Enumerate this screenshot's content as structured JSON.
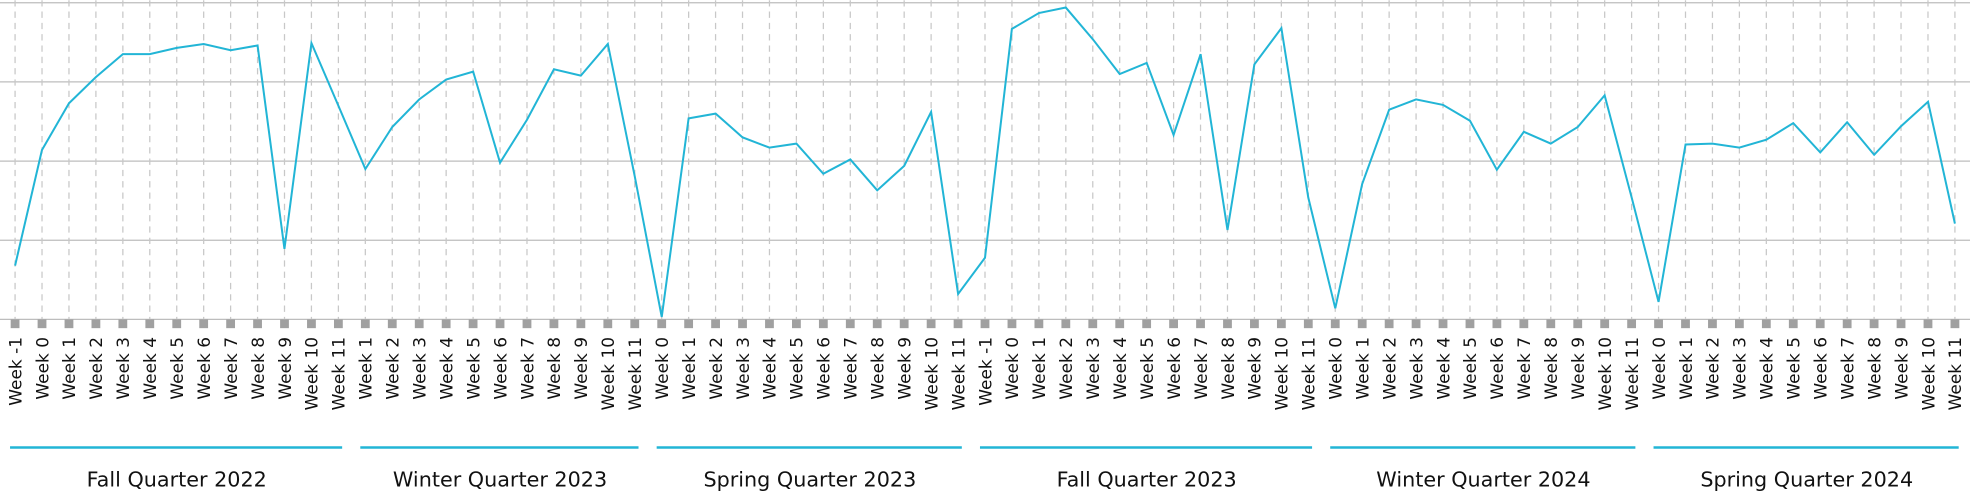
{
  "chart_data": {
    "type": "line",
    "color": "#22b5d6",
    "ylim": [
      0,
      4
    ],
    "yticks": [
      0,
      1,
      2,
      3,
      4
    ],
    "grid": true,
    "groups": [
      {
        "label": "Fall Quarter 2022",
        "categories": [
          "Week -1",
          "Week 0",
          "Week 1",
          "Week 2",
          "Week 3",
          "Week 4",
          "Week 5",
          "Week 6",
          "Week 7",
          "Week 8",
          "Week 9",
          "Week 10",
          "Week 11"
        ],
        "values": [
          0.68,
          2.14,
          2.73,
          3.06,
          3.35,
          3.35,
          3.43,
          3.48,
          3.4,
          3.46,
          0.89,
          3.49,
          2.7
        ]
      },
      {
        "label": "Winter Quarter 2023",
        "categories": [
          "Week 1",
          "Week 2",
          "Week 3",
          "Week 4",
          "Week 5",
          "Week 6",
          "Week 7",
          "Week 8",
          "Week 9",
          "Week 10",
          "Week 11"
        ],
        "values": [
          1.9,
          2.43,
          2.78,
          3.03,
          3.13,
          1.98,
          2.52,
          3.16,
          3.08,
          3.48,
          1.81
        ]
      },
      {
        "label": "Spring Quarter 2023",
        "categories": [
          "Week 0",
          "Week 1",
          "Week 2",
          "Week 3",
          "Week 4",
          "Week 5",
          "Week 6",
          "Week 7",
          "Week 8",
          "Week 9",
          "Week 10",
          "Week 11"
        ],
        "values": [
          0.03,
          2.54,
          2.6,
          2.3,
          2.17,
          2.22,
          1.84,
          2.02,
          1.63,
          1.94,
          2.62,
          0.32
        ]
      },
      {
        "label": "Fall Quarter 2023",
        "categories": [
          "Week -1",
          "Week 0",
          "Week 1",
          "Week 2",
          "Week 3",
          "Week 4",
          "Week 5",
          "Week 6",
          "Week 7",
          "Week 8",
          "Week 9",
          "Week 10",
          "Week 11"
        ],
        "values": [
          0.78,
          3.67,
          3.87,
          3.94,
          3.54,
          3.1,
          3.24,
          2.33,
          3.35,
          1.13,
          3.22,
          3.68,
          1.54
        ]
      },
      {
        "label": "Winter Quarter 2024",
        "categories": [
          "Week 0",
          "Week 1",
          "Week 2",
          "Week 3",
          "Week 4",
          "Week 5",
          "Week 6",
          "Week 7",
          "Week 8",
          "Week 9",
          "Week 10",
          "Week 11"
        ],
        "values": [
          0.14,
          1.71,
          2.65,
          2.78,
          2.71,
          2.51,
          1.89,
          2.37,
          2.22,
          2.43,
          2.83,
          1.54
        ]
      },
      {
        "label": "Spring Quarter 2024",
        "categories": [
          "Week 0",
          "Week 1",
          "Week 2",
          "Week 3",
          "Week 4",
          "Week 5",
          "Week 6",
          "Week 7",
          "Week 8",
          "Week 9",
          "Week 10",
          "Week 11"
        ],
        "values": [
          0.22,
          2.21,
          2.22,
          2.17,
          2.27,
          2.48,
          2.11,
          2.49,
          2.08,
          2.44,
          2.75,
          1.21
        ]
      }
    ]
  }
}
